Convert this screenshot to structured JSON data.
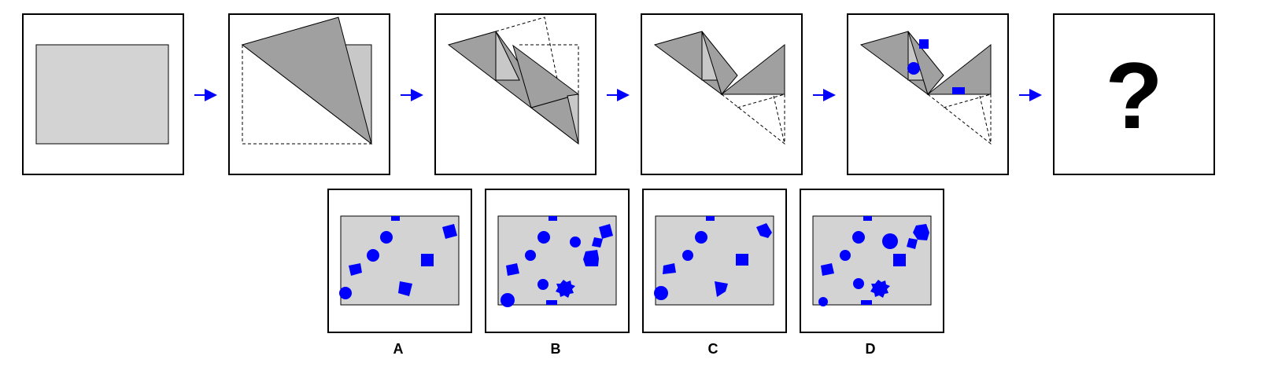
{
  "colors": {
    "paper": "#d3d3d3",
    "fold_dark": "#a0a0a0",
    "fold_light": "#c8c8c8",
    "punch": "#0000ff",
    "arrow": "#0000ff",
    "outline": "#000000"
  },
  "sequence": {
    "steps": [
      "unfolded-sheet",
      "fold-1",
      "fold-2",
      "fold-3",
      "punch-holes"
    ],
    "question_symbol": "?"
  },
  "options": [
    {
      "label": "A",
      "holes": [
        "square",
        "circle",
        "circle",
        "pentagon",
        "circle",
        "square",
        "pentagon",
        "square"
      ]
    },
    {
      "label": "B",
      "holes": [
        "square",
        "circle",
        "circle",
        "square",
        "square",
        "circle",
        "star",
        "circle",
        "circle",
        "pentagon",
        "star",
        "square"
      ]
    },
    {
      "label": "C",
      "holes": [
        "square",
        "circle",
        "circle",
        "pentagon",
        "square",
        "circle",
        "pentagon"
      ]
    },
    {
      "label": "D",
      "holes": [
        "square",
        "circle",
        "circle",
        "star",
        "square",
        "circle",
        "square",
        "circle",
        "pentagon",
        "star",
        "circle",
        "square"
      ]
    }
  ]
}
